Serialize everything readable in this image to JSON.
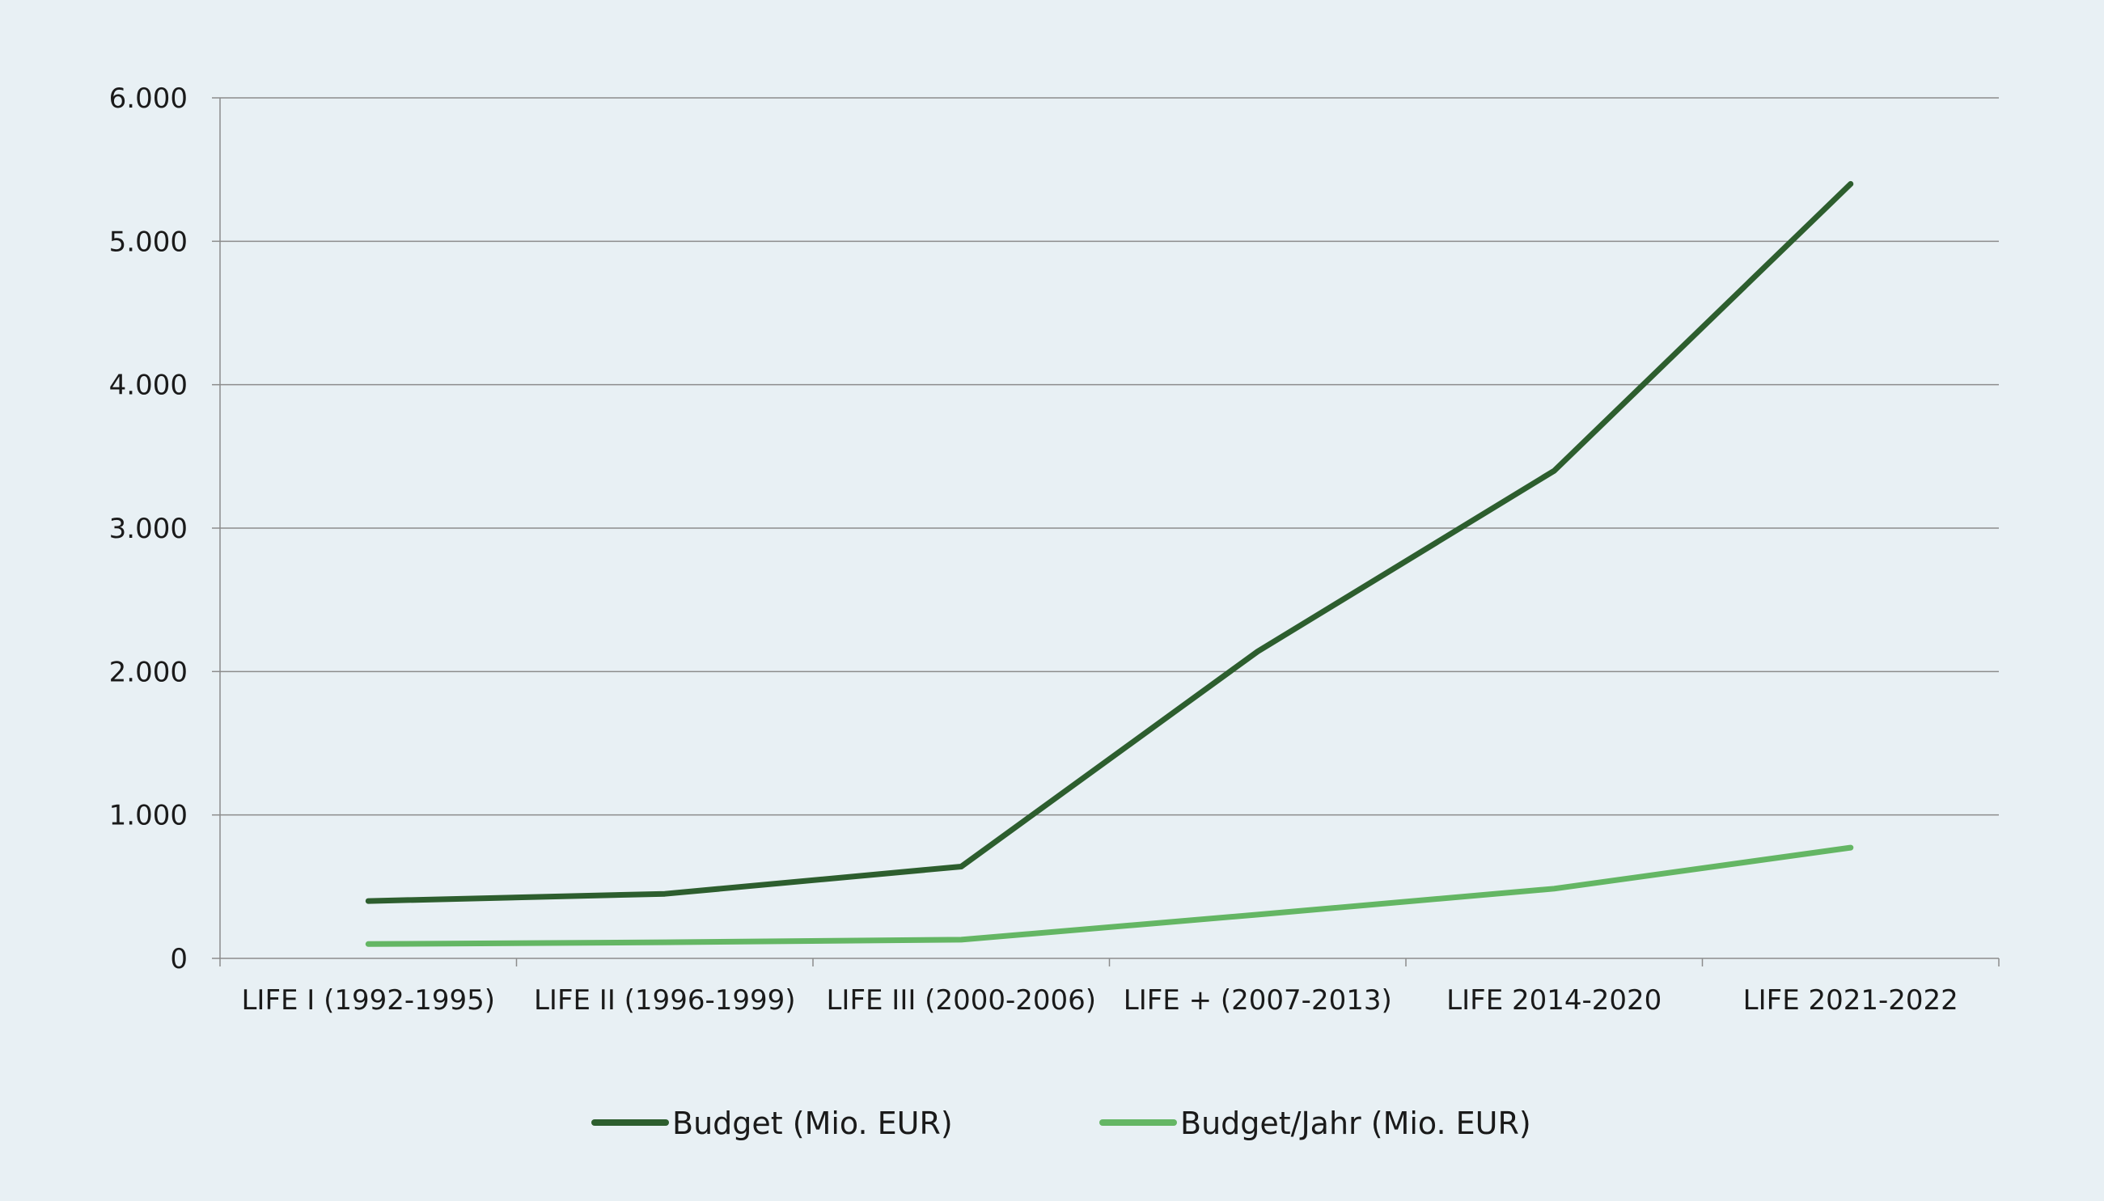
{
  "chart_data": {
    "type": "line",
    "title": "",
    "xlabel": "",
    "ylabel": "",
    "categories": [
      "LIFE I (1992-1995)",
      "LIFE II (1996-1999)",
      "LIFE III (2000-2006)",
      "LIFE + (2007-2013)",
      "LIFE 2014-2020",
      "LIFE 2021-2022"
    ],
    "series": [
      {
        "name": "Budget (Mio. EUR)",
        "color": "#2d5e2e",
        "values": [
          400,
          450,
          640,
          2140,
          3400,
          5400
        ]
      },
      {
        "name": "Budget/Jahr (Mio. EUR)",
        "color": "#64b664",
        "values": [
          100,
          112,
          130,
          305,
          486,
          772
        ]
      }
    ],
    "ylim": [
      0,
      6000
    ],
    "yticks": [
      0,
      1000,
      2000,
      3000,
      4000,
      5000,
      6000
    ],
    "ytick_labels": [
      "0",
      "1.000",
      "2.000",
      "3.000",
      "4.000",
      "5.000",
      "6.000"
    ],
    "grid": true,
    "legend_position": "bottom"
  }
}
